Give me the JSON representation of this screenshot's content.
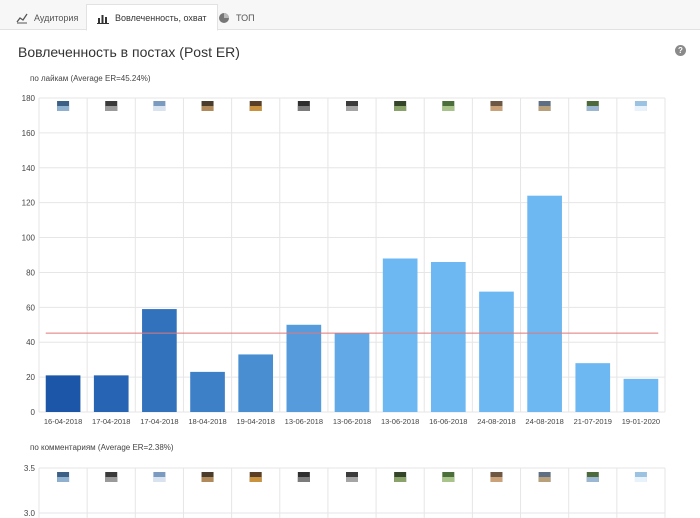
{
  "tabs": [
    {
      "label": "Аудитория",
      "icon": "line-chart-icon",
      "active": false
    },
    {
      "label": "Вовлеченность, охват",
      "icon": "bar-chart-icon",
      "active": true
    },
    {
      "label": "ТОП",
      "icon": "pie-chart-icon",
      "active": false
    }
  ],
  "page": {
    "title": "Вовлеченность в постах (Post ER)",
    "help_icon": "question-circle-icon",
    "help_glyph": "?"
  },
  "chart_data": [
    {
      "type": "bar",
      "title": "по лайкам (Average ER=45.24%)",
      "categories": [
        "16-04-2018",
        "17-04-2018",
        "17-04-2018",
        "18-04-2018",
        "19-04-2018",
        "13-06-2018",
        "13-06-2018",
        "13-06-2018",
        "16-06-2018",
        "24-08-2018",
        "24-08-2018",
        "21-07-2019",
        "19-01-2020"
      ],
      "values": [
        21,
        21,
        59,
        23,
        33,
        50,
        45,
        88,
        86,
        69,
        124,
        28,
        19
      ],
      "average_line": 45.24,
      "ylim": [
        0,
        180
      ],
      "yticks": [
        "0",
        "20",
        "40",
        "60",
        "80",
        "100",
        "120",
        "140",
        "160",
        "180"
      ],
      "grid": true,
      "colors": {
        "bar_dark": "#1b56a8",
        "bar_light": "#6db8f2",
        "average_line": "#e07878",
        "grid": "#e6e6e6"
      },
      "thumbnail_icons": [
        "photo-icon",
        "photo-icon",
        "photo-icon",
        "photo-icon",
        "photo-icon",
        "photo-icon",
        "photo-icon",
        "photo-icon",
        "photo-icon",
        "photo-icon",
        "photo-icon",
        "photo-icon",
        "photo-icon"
      ]
    },
    {
      "type": "bar",
      "title": "по комментариям (Average ER=2.38%)",
      "visible_yticks": [
        "3.5",
        "3.0"
      ],
      "ylim_top": 3.5,
      "thumbnail_icons": [
        "photo-icon",
        "photo-icon",
        "photo-icon",
        "photo-icon",
        "photo-icon",
        "photo-icon",
        "photo-icon",
        "photo-icon",
        "photo-icon",
        "photo-icon",
        "photo-icon",
        "photo-icon",
        "photo-icon"
      ]
    }
  ]
}
